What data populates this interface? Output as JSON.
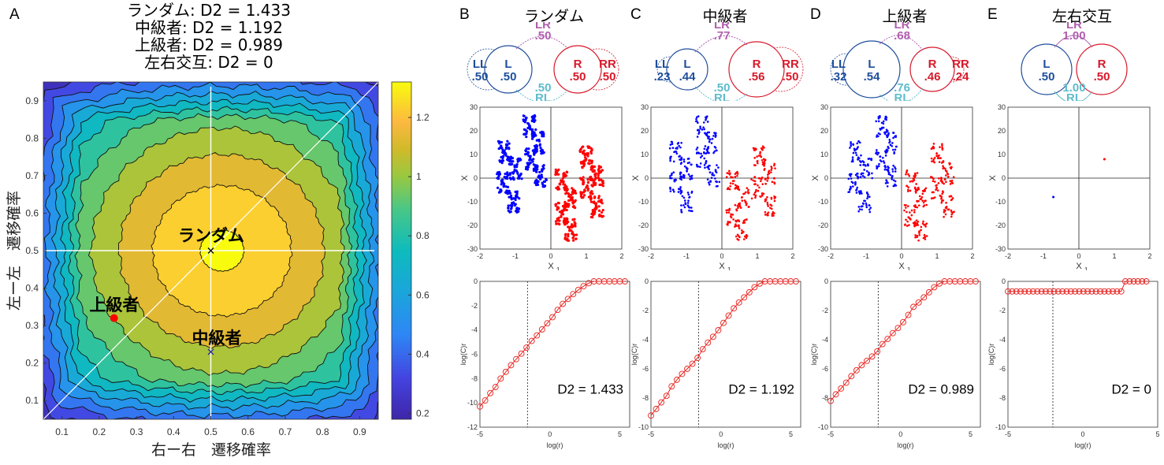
{
  "panel_a": {
    "letter": "A",
    "title_lines": [
      "ランダム: D2 = 1.433",
      "中級者: D2 = 1.192",
      "上級者: D2 = 0.989",
      "左右交互: D2 = 0"
    ],
    "xlabel": "右ー右　遷移確率",
    "ylabel": "左ー左　遷移確率",
    "annotations": {
      "random": "ランダム",
      "intermediate": "中級者",
      "advanced": "上級者"
    }
  },
  "panels": [
    {
      "letter": "B",
      "title": "ランダム",
      "LL": ".50",
      "L": ".50",
      "R": ".50",
      "RR": ".50",
      "LR": ".50",
      "RL": ".50",
      "d2_label": "D2 = 1.433"
    },
    {
      "letter": "C",
      "title": "中級者",
      "LL": ".23",
      "L": ".44",
      "R": ".56",
      "RR": ".50",
      "LR": ".77",
      "RL": ".50",
      "d2_label": "D2 = 1.192"
    },
    {
      "letter": "D",
      "title": "上級者",
      "LL": ".32",
      "L": ".54",
      "R": ".46",
      "RR": ".24",
      "LR": ".68",
      "RL": ".76",
      "d2_label": "D2 = 0.989"
    },
    {
      "letter": "E",
      "title": "左右交互",
      "LL": "",
      "L": ".50",
      "R": ".50",
      "RR": "",
      "LR": "1.00",
      "RL": "1.00",
      "d2_label": "D2 = 0"
    }
  ],
  "labels": {
    "LL": "LL",
    "L": "L",
    "R": "R",
    "RR": "RR",
    "LR": "LR",
    "RL": "RL",
    "x1": "X",
    "x2": "X",
    "sub1": "1",
    "sub2": "2",
    "logc": "log(C)r",
    "logr": "log(r)"
  },
  "colors": {
    "left": "#1f4e9c",
    "right": "#d7192a",
    "lr": "#b05fb0",
    "rl": "#5fbccb",
    "scatter_left": "#0000ff",
    "scatter_right": "#ff0000",
    "curve": "#e8231f"
  },
  "chart_data": [
    {
      "type": "heatmap",
      "subtype": "filled-contour",
      "title": "ランダム: D2 = 1.433 / 中級者: D2 = 1.192 / 上級者: D2 = 0.989 / 左右交互: D2 = 0",
      "xlabel": "右ー右　遷移確率",
      "ylabel": "左ー左　遷移確率",
      "xlim": [
        0.05,
        0.95
      ],
      "ylim": [
        0.05,
        0.95
      ],
      "xticks": [
        0.1,
        0.2,
        0.3,
        0.4,
        0.5,
        0.6,
        0.7,
        0.8,
        0.9
      ],
      "yticks": [
        0.1,
        0.2,
        0.3,
        0.4,
        0.5,
        0.6,
        0.7,
        0.8,
        0.9
      ],
      "colorbar": {
        "ticks": [
          0.2,
          0.4,
          0.6,
          0.8,
          1,
          1.2
        ],
        "range": [
          0.18,
          1.32
        ],
        "colormap": "parula"
      },
      "peak": {
        "x": 0.5,
        "y": 0.5,
        "value": 1.3
      },
      "markers": [
        {
          "label": "ランダム",
          "x": 0.5,
          "y": 0.5,
          "marker": "x",
          "color": "#000000"
        },
        {
          "label": "中級者",
          "x": 0.5,
          "y": 0.23,
          "marker": "x",
          "color": "#2020a0"
        },
        {
          "label": "上級者",
          "x": 0.24,
          "y": 0.32,
          "marker": "dot",
          "color": "#ff0000"
        }
      ],
      "reference_lines": [
        "x=0.5",
        "y=0.5",
        "y=x"
      ]
    },
    {
      "type": "scatter",
      "panel": "B",
      "xlabel": "X1",
      "ylabel": "X2",
      "xlim": [
        -2,
        2
      ],
      "ylim": [
        -30,
        30
      ],
      "xticks": [
        -2,
        -1,
        0,
        1,
        2
      ],
      "yticks": [
        -30,
        -20,
        -10,
        0,
        10,
        20,
        30
      ],
      "series": [
        {
          "name": "L",
          "color": "#0000ff",
          "clusters": [
            [
              -0.6,
              22
            ],
            [
              -0.35,
              15
            ],
            [
              -0.55,
              8
            ],
            [
              -0.3,
              1
            ],
            [
              -1.3,
              11
            ],
            [
              -1.0,
              4
            ],
            [
              -1.35,
              -2
            ],
            [
              -1.05,
              -10
            ]
          ]
        },
        {
          "name": "R",
          "color": "#ff0000",
          "clusters": [
            [
              1.0,
              9
            ],
            [
              1.3,
              1
            ],
            [
              1.0,
              -4
            ],
            [
              1.3,
              -12
            ],
            [
              0.3,
              -1
            ],
            [
              0.55,
              -8
            ],
            [
              0.3,
              -15
            ],
            [
              0.55,
              -22
            ]
          ]
        }
      ]
    },
    {
      "type": "scatter",
      "panel": "C",
      "xlabel": "X1",
      "ylabel": "X2",
      "xlim": [
        -2,
        2
      ],
      "ylim": [
        -30,
        30
      ],
      "xticks": [
        -2,
        -1,
        0,
        1,
        2
      ],
      "yticks": [
        -30,
        -20,
        -10,
        0,
        10,
        20,
        30
      ],
      "series": [
        {
          "name": "L",
          "color": "#0000ff",
          "clusters": [
            [
              -0.55,
              22
            ],
            [
              -0.3,
              15
            ],
            [
              -0.55,
              9
            ],
            [
              -0.25,
              1
            ],
            [
              -1.3,
              11
            ],
            [
              -1.0,
              4
            ],
            [
              -1.3,
              -2
            ],
            [
              -1.0,
              -10
            ]
          ]
        },
        {
          "name": "R",
          "color": "#ff0000",
          "clusters": [
            [
              1.05,
              10
            ],
            [
              1.35,
              2
            ],
            [
              1.0,
              -4
            ],
            [
              1.35,
              -12
            ],
            [
              0.3,
              -1
            ],
            [
              0.6,
              -8
            ],
            [
              0.3,
              -16
            ],
            [
              0.55,
              -22
            ]
          ]
        }
      ]
    },
    {
      "type": "scatter",
      "panel": "D",
      "xlabel": "X1",
      "ylabel": "X2",
      "xlim": [
        -2,
        2
      ],
      "ylim": [
        -30,
        30
      ],
      "xticks": [
        -2,
        -1,
        0,
        1,
        2
      ],
      "yticks": [
        -30,
        -20,
        -10,
        0,
        10,
        20,
        30
      ],
      "series": [
        {
          "name": "L",
          "color": "#0000ff",
          "clusters": [
            [
              -0.55,
              22
            ],
            [
              -0.3,
              15
            ],
            [
              -0.55,
              8
            ],
            [
              -0.3,
              1
            ],
            [
              -1.3,
              11
            ],
            [
              -1.0,
              4
            ],
            [
              -1.35,
              -2
            ],
            [
              -1.05,
              -10
            ]
          ]
        },
        {
          "name": "R",
          "color": "#ff0000",
          "clusters": [
            [
              1.0,
              10
            ],
            [
              1.3,
              2
            ],
            [
              1.0,
              -4
            ],
            [
              1.3,
              -12
            ],
            [
              0.3,
              -1
            ],
            [
              0.55,
              -8
            ],
            [
              0.25,
              -16
            ],
            [
              0.55,
              -22
            ]
          ]
        }
      ]
    },
    {
      "type": "scatter",
      "panel": "E",
      "xlabel": "X1",
      "ylabel": "X2",
      "xlim": [
        -2,
        2
      ],
      "ylim": [
        -30,
        30
      ],
      "xticks": [
        -2,
        -1,
        0,
        1,
        2
      ],
      "yticks": [
        -30,
        -20,
        -10,
        0,
        10,
        20,
        30
      ],
      "series": [
        {
          "name": "L",
          "color": "#0000ff",
          "points": [
            [
              -0.72,
              -8
            ]
          ]
        },
        {
          "name": "R",
          "color": "#ff0000",
          "points": [
            [
              0.72,
              8
            ]
          ]
        }
      ]
    },
    {
      "type": "line",
      "panel": "B",
      "xlabel": "log(r)",
      "ylabel": "log(C)r",
      "annotation": "D2 = 1.433",
      "xlim": [
        -5,
        5.7
      ],
      "ylim": [
        -12,
        0
      ],
      "xticks": [
        -5,
        0,
        5
      ],
      "yticks": [
        -12,
        -10,
        -8,
        -6,
        -4,
        -2,
        0
      ],
      "vline": -1.6,
      "x": [
        -5.0,
        -4.63,
        -4.26,
        -3.89,
        -3.52,
        -3.15,
        -2.78,
        -2.41,
        -2.04,
        -1.67,
        -1.3,
        -0.93,
        -0.56,
        -0.19,
        0.18,
        0.55,
        0.92,
        1.29,
        1.66,
        2.03,
        2.4,
        2.77,
        3.14,
        3.51,
        3.88,
        4.25,
        4.62,
        4.99,
        5.36
      ],
      "y": [
        -10.3,
        -9.8,
        -9.2,
        -8.7,
        -8.0,
        -7.45,
        -6.9,
        -6.4,
        -5.95,
        -5.45,
        -4.9,
        -4.45,
        -3.95,
        -3.45,
        -2.95,
        -2.35,
        -1.85,
        -1.45,
        -1.05,
        -0.7,
        -0.4,
        -0.15,
        0,
        0,
        0,
        0,
        0,
        0,
        0
      ]
    },
    {
      "type": "line",
      "panel": "C",
      "xlabel": "log(r)",
      "ylabel": "log(C)r",
      "annotation": "D2 = 1.192",
      "xlim": [
        -5,
        5.7
      ],
      "ylim": [
        -10,
        0
      ],
      "xticks": [
        -5,
        0,
        5
      ],
      "yticks": [
        -10,
        -8,
        -6,
        -4,
        -2,
        0
      ],
      "vline": -1.6,
      "x": [
        -5.0,
        -4.63,
        -4.26,
        -3.89,
        -3.52,
        -3.15,
        -2.78,
        -2.41,
        -2.04,
        -1.67,
        -1.3,
        -0.93,
        -0.56,
        -0.19,
        0.18,
        0.55,
        0.92,
        1.29,
        1.66,
        2.03,
        2.4,
        2.77,
        3.14,
        3.51,
        3.88,
        4.25,
        4.62,
        4.99,
        5.36
      ],
      "y": [
        -9.2,
        -8.75,
        -8.3,
        -7.85,
        -7.2,
        -6.75,
        -6.35,
        -6.0,
        -5.65,
        -5.25,
        -4.65,
        -4.2,
        -3.8,
        -3.35,
        -2.85,
        -2.35,
        -1.85,
        -1.45,
        -1.1,
        -0.75,
        -0.4,
        -0.15,
        0,
        0,
        0,
        0,
        0,
        0,
        0
      ]
    },
    {
      "type": "line",
      "panel": "D",
      "xlabel": "log(r)",
      "ylabel": "log(C)r",
      "annotation": "D2 = 0.989",
      "xlim": [
        -5,
        5.7
      ],
      "ylim": [
        -10,
        0
      ],
      "xticks": [
        -5,
        0,
        5
      ],
      "yticks": [
        -10,
        -8,
        -6,
        -4,
        -2,
        0
      ],
      "vline": -1.6,
      "x": [
        -5.0,
        -4.63,
        -4.26,
        -3.89,
        -3.52,
        -3.15,
        -2.78,
        -2.41,
        -2.04,
        -1.67,
        -1.3,
        -0.93,
        -0.56,
        -0.19,
        0.18,
        0.55,
        0.92,
        1.29,
        1.66,
        2.03,
        2.4,
        2.77,
        3.14,
        3.51,
        3.88,
        4.25,
        4.62,
        4.99,
        5.36
      ],
      "y": [
        -8.2,
        -7.75,
        -7.35,
        -6.95,
        -6.5,
        -6.1,
        -5.75,
        -5.45,
        -5.15,
        -4.8,
        -4.3,
        -3.95,
        -3.55,
        -3.2,
        -2.8,
        -2.3,
        -1.75,
        -1.45,
        -1.1,
        -0.75,
        -0.4,
        -0.15,
        0,
        0,
        0,
        0,
        0,
        0,
        0
      ]
    },
    {
      "type": "line",
      "panel": "E",
      "xlabel": "log(r)",
      "ylabel": "log(C)r",
      "annotation": "D2 = 0",
      "xlim": [
        -5,
        5
      ],
      "ylim": [
        -10,
        0
      ],
      "xticks": [
        -5,
        0,
        5
      ],
      "yticks": [
        -10,
        -8,
        -6,
        -4,
        -2,
        0
      ],
      "vline": -2.0,
      "x": [
        -5.0,
        -4.72,
        -4.44,
        -4.16,
        -3.88,
        -3.6,
        -3.32,
        -3.04,
        -2.76,
        -2.48,
        -2.2,
        -1.92,
        -1.64,
        -1.36,
        -1.08,
        -0.8,
        -0.52,
        -0.24,
        0.04,
        0.32,
        0.6,
        0.88,
        1.16,
        1.44,
        1.72,
        2.0,
        2.28,
        2.56,
        2.84,
        3.12,
        3.4,
        3.68,
        3.96,
        4.24
      ],
      "y": [
        -0.69,
        -0.69,
        -0.69,
        -0.69,
        -0.69,
        -0.69,
        -0.69,
        -0.69,
        -0.69,
        -0.69,
        -0.69,
        -0.69,
        -0.69,
        -0.69,
        -0.69,
        -0.69,
        -0.69,
        -0.69,
        -0.69,
        -0.69,
        -0.69,
        -0.69,
        -0.69,
        -0.69,
        -0.69,
        -0.69,
        -0.69,
        -0.69,
        0,
        0,
        0,
        0,
        0,
        0
      ]
    }
  ]
}
